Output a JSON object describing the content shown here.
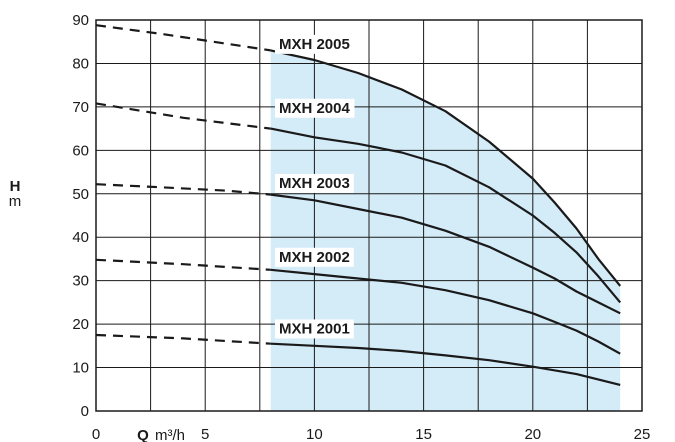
{
  "chart_data": {
    "type": "line",
    "xlabel": {
      "symbol": "Q",
      "unit": "m³/h"
    },
    "ylabel": {
      "symbol": "H",
      "unit": "m"
    },
    "xlim": [
      0,
      25
    ],
    "ylim": [
      0,
      90
    ],
    "x_ticks": [
      0,
      5,
      10,
      15,
      20,
      25
    ],
    "y_ticks": [
      0,
      10,
      20,
      30,
      40,
      50,
      60,
      70,
      80,
      90
    ],
    "grid": true,
    "operating_range": {
      "x": [
        8,
        24
      ],
      "color": "#d4ebf8"
    },
    "colors": {
      "line": "#1a1a1a",
      "grid": "#1a1a1a",
      "shade": "#d4ebf8"
    },
    "series": [
      {
        "name": "MXH 2005",
        "label_at": [
          10,
          84.5
        ],
        "dashed": [
          [
            0,
            88.8
          ],
          [
            3,
            86.8
          ],
          [
            8,
            83
          ]
        ],
        "solid": [
          [
            8,
            83
          ],
          [
            10,
            80.8
          ],
          [
            12,
            77.8
          ],
          [
            14,
            74
          ],
          [
            16,
            69
          ],
          [
            18,
            62
          ],
          [
            20,
            53.5
          ],
          [
            21,
            48
          ],
          [
            22,
            42
          ],
          [
            23,
            35
          ],
          [
            24,
            28.8
          ]
        ]
      },
      {
        "name": "MXH 2004",
        "label_at": [
          10,
          69.8
        ],
        "dashed": [
          [
            0,
            70.8
          ],
          [
            4,
            67.5
          ],
          [
            8,
            65
          ]
        ],
        "solid": [
          [
            8,
            65
          ],
          [
            10,
            63
          ],
          [
            12,
            61.5
          ],
          [
            14,
            59.5
          ],
          [
            16,
            56.5
          ],
          [
            18,
            51.5
          ],
          [
            20,
            45
          ],
          [
            21,
            41
          ],
          [
            22,
            36.5
          ],
          [
            23,
            31
          ],
          [
            24,
            25
          ]
        ]
      },
      {
        "name": "MXH 2003",
        "label_at": [
          10,
          52.5
        ],
        "dashed": [
          [
            0,
            52.2
          ],
          [
            3,
            51.5
          ],
          [
            6,
            50.7
          ],
          [
            8,
            49.8
          ]
        ],
        "solid": [
          [
            8,
            49.8
          ],
          [
            10,
            48.5
          ],
          [
            12,
            46.5
          ],
          [
            14,
            44.5
          ],
          [
            16,
            41.5
          ],
          [
            18,
            37.8
          ],
          [
            20,
            33
          ],
          [
            21,
            30.5
          ],
          [
            22,
            27.5
          ],
          [
            23,
            25
          ],
          [
            24,
            22.5
          ]
        ]
      },
      {
        "name": "MXH 2002",
        "label_at": [
          10,
          35.5
        ],
        "dashed": [
          [
            0,
            34.8
          ],
          [
            4,
            33.8
          ],
          [
            8,
            32.5
          ]
        ],
        "solid": [
          [
            8,
            32.5
          ],
          [
            10,
            31.5
          ],
          [
            12,
            30.5
          ],
          [
            14,
            29.5
          ],
          [
            16,
            27.8
          ],
          [
            18,
            25.5
          ],
          [
            20,
            22.5
          ],
          [
            21,
            20.5
          ],
          [
            22,
            18.5
          ],
          [
            23,
            16
          ],
          [
            24,
            13.2
          ]
        ]
      },
      {
        "name": "MXH 2001",
        "label_at": [
          10,
          19
        ],
        "dashed": [
          [
            0,
            17.5
          ],
          [
            4,
            16.7
          ],
          [
            8,
            15.5
          ]
        ],
        "solid": [
          [
            8,
            15.5
          ],
          [
            10,
            15
          ],
          [
            12,
            14.5
          ],
          [
            14,
            13.8
          ],
          [
            16,
            12.8
          ],
          [
            18,
            11.7
          ],
          [
            20,
            10.2
          ],
          [
            22,
            8.5
          ],
          [
            24,
            6
          ]
        ]
      }
    ]
  }
}
